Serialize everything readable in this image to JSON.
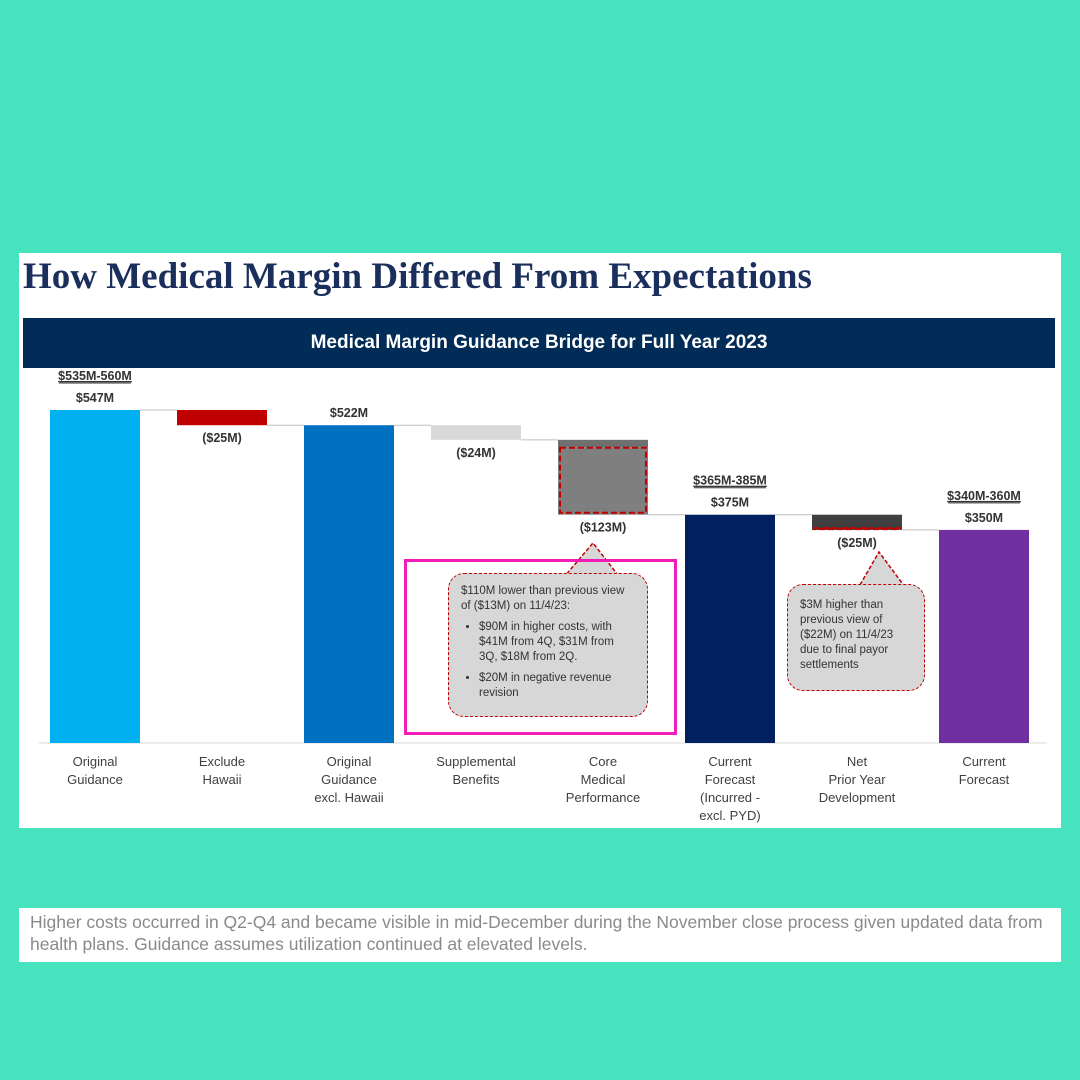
{
  "slide": {
    "title": "How Medical Margin Differed From Expectations",
    "banner": "Medical Margin Guidance Bridge for Full Year 2023"
  },
  "chart_data": {
    "type": "bar",
    "subtype": "waterfall",
    "title": "Medical Margin Guidance Bridge for Full Year 2023",
    "unit": "$M",
    "categories": [
      [
        "Original",
        "Guidance"
      ],
      [
        "Exclude",
        "Hawaii"
      ],
      [
        "Original",
        "Guidance",
        "excl. Hawaii"
      ],
      [
        "Supplemental",
        "Benefits"
      ],
      [
        "Core",
        "Medical",
        "Performance"
      ],
      [
        "Current",
        "Forecast",
        "(Incurred -",
        "excl. PYD)"
      ],
      [
        "Net",
        "Prior Year",
        "Development"
      ],
      [
        "Current",
        "Forecast"
      ]
    ],
    "bars": [
      {
        "kind": "total",
        "start": 0,
        "end": 547,
        "value_label": "$547M",
        "range_label": "$535M-560M",
        "color": "#00b0f0"
      },
      {
        "kind": "delta",
        "start": 547,
        "end": 522,
        "value_label": "($25M)",
        "color": "#c00000"
      },
      {
        "kind": "total",
        "start": 0,
        "end": 522,
        "value_label": "$522M",
        "color": "#0070c0"
      },
      {
        "kind": "delta",
        "start": 522,
        "end": 498,
        "value_label": "($24M)",
        "color": "#d9d9d9"
      },
      {
        "kind": "delta",
        "start": 498,
        "end": 375,
        "value_label": "($123M)",
        "color": "#7f7f7f",
        "top_color": "#707070",
        "dashed_from": 485
      },
      {
        "kind": "total",
        "start": 0,
        "end": 375,
        "value_label": "$375M",
        "range_label": "$365M-385M",
        "color": "#002060"
      },
      {
        "kind": "delta",
        "start": 375,
        "end": 350,
        "value_label": "($25M)",
        "color": "#404040",
        "dashed_from": 353
      },
      {
        "kind": "total",
        "start": 0,
        "end": 350,
        "value_label": "$350M",
        "range_label": "$340M-360M",
        "color": "#7030a0"
      }
    ],
    "ylim": [
      0,
      560
    ],
    "grid": false,
    "legend": "none",
    "annotations": {
      "core": {
        "intro": "$110M lower than previous view of ($13M) on 11/4/23:",
        "bullets": [
          "$90M in higher costs, with $41M from 4Q, $31M from 3Q, $18M from 2Q.",
          "$20M in negative revenue revision"
        ]
      },
      "pyd": "$3M higher than previous view of ($22M) on 11/4/23 due to final payor settlements"
    }
  },
  "footnote": "Higher costs occurred in Q2-Q4 and became visible in mid-December during the November close process given updated data from health plans.  Guidance assumes utilization continued at elevated levels."
}
